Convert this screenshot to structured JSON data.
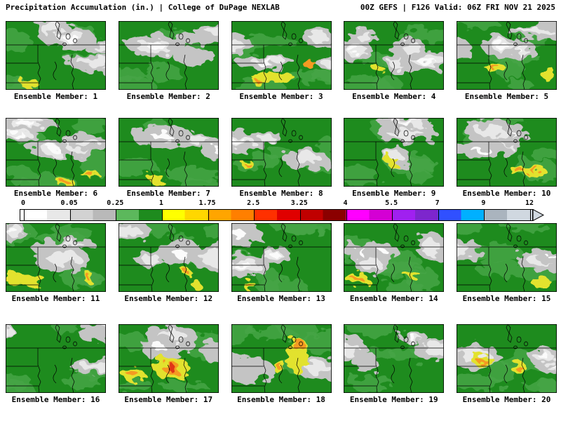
{
  "header": {
    "left": "Precipitation Accumulation (in.) | College of DuPage NEXLAB",
    "right": "00Z GEFS | F126 Valid: 06Z FRI NOV 21 2025"
  },
  "panels": [
    {
      "label": "Ensemble Member: 1"
    },
    {
      "label": "Ensemble Member: 2"
    },
    {
      "label": "Ensemble Member: 3"
    },
    {
      "label": "Ensemble Member: 4"
    },
    {
      "label": "Ensemble Member: 5"
    },
    {
      "label": "Ensemble Member: 6"
    },
    {
      "label": "Ensemble Member: 7"
    },
    {
      "label": "Ensemble Member: 8"
    },
    {
      "label": "Ensemble Member: 9"
    },
    {
      "label": "Ensemble Member: 10"
    },
    {
      "label": "Ensemble Member: 11"
    },
    {
      "label": "Ensemble Member: 12"
    },
    {
      "label": "Ensemble Member: 13"
    },
    {
      "label": "Ensemble Member: 14"
    },
    {
      "label": "Ensemble Member: 15"
    },
    {
      "label": "Ensemble Member: 16"
    },
    {
      "label": "Ensemble Member: 17"
    },
    {
      "label": "Ensemble Member: 18"
    },
    {
      "label": "Ensemble Member: 19"
    },
    {
      "label": "Ensemble Member: 20"
    }
  ],
  "colorbar": {
    "ticks": [
      "0",
      "0.05",
      "0.25",
      "1",
      "1.75",
      "2.5",
      "3.25",
      "4",
      "5.5",
      "7",
      "9",
      "12"
    ],
    "segment_colors": [
      "#ffffff",
      "#e8e8e8",
      "#d2d2d2",
      "#b9b9b9",
      "#5cb85c",
      "#1e8b1e",
      "#ffff00",
      "#ffd700",
      "#ffa500",
      "#ff7f00",
      "#ff3000",
      "#e00000",
      "#c00000",
      "#8b0000",
      "#ff00ff",
      "#d400d4",
      "#a020f0",
      "#7d26cd",
      "#3050ff",
      "#00b0ff",
      "#aab4be",
      "#d0d8e0"
    ]
  },
  "map_colors": {
    "base_green": "#1e8b1e",
    "light_green": "#45a645",
    "gray": "#c4c4c4",
    "light_gray": "#e8e8e8",
    "white": "#fbfbfb",
    "yellow": "#e2e22e",
    "orange": "#f59a23",
    "red": "#e03414",
    "border": "#000000"
  },
  "chart_data": {
    "type": "heatmap",
    "title": "Precipitation Accumulation (in.)",
    "source": "College of DuPage NEXLAB",
    "model": "00Z GEFS",
    "forecast_hour": "F126",
    "valid_time": "06Z FRI NOV 21 2025",
    "units": "in.",
    "layout": "4 rows x 5 columns of ensemble member maps",
    "colorbar_ticks_in": [
      0,
      0.05,
      0.25,
      1,
      1.75,
      2.5,
      3.25,
      4,
      5.5,
      7,
      9,
      12
    ],
    "panel_labels": [
      "Ensemble Member: 1",
      "Ensemble Member: 2",
      "Ensemble Member: 3",
      "Ensemble Member: 4",
      "Ensemble Member: 5",
      "Ensemble Member: 6",
      "Ensemble Member: 7",
      "Ensemble Member: 8",
      "Ensemble Member: 9",
      "Ensemble Member: 10",
      "Ensemble Member: 11",
      "Ensemble Member: 12",
      "Ensemble Member: 13",
      "Ensemble Member: 14",
      "Ensemble Member: 15",
      "Ensemble Member: 16",
      "Ensemble Member: 17",
      "Ensemble Member: 18",
      "Ensemble Member: 19",
      "Ensemble Member: 20"
    ]
  }
}
